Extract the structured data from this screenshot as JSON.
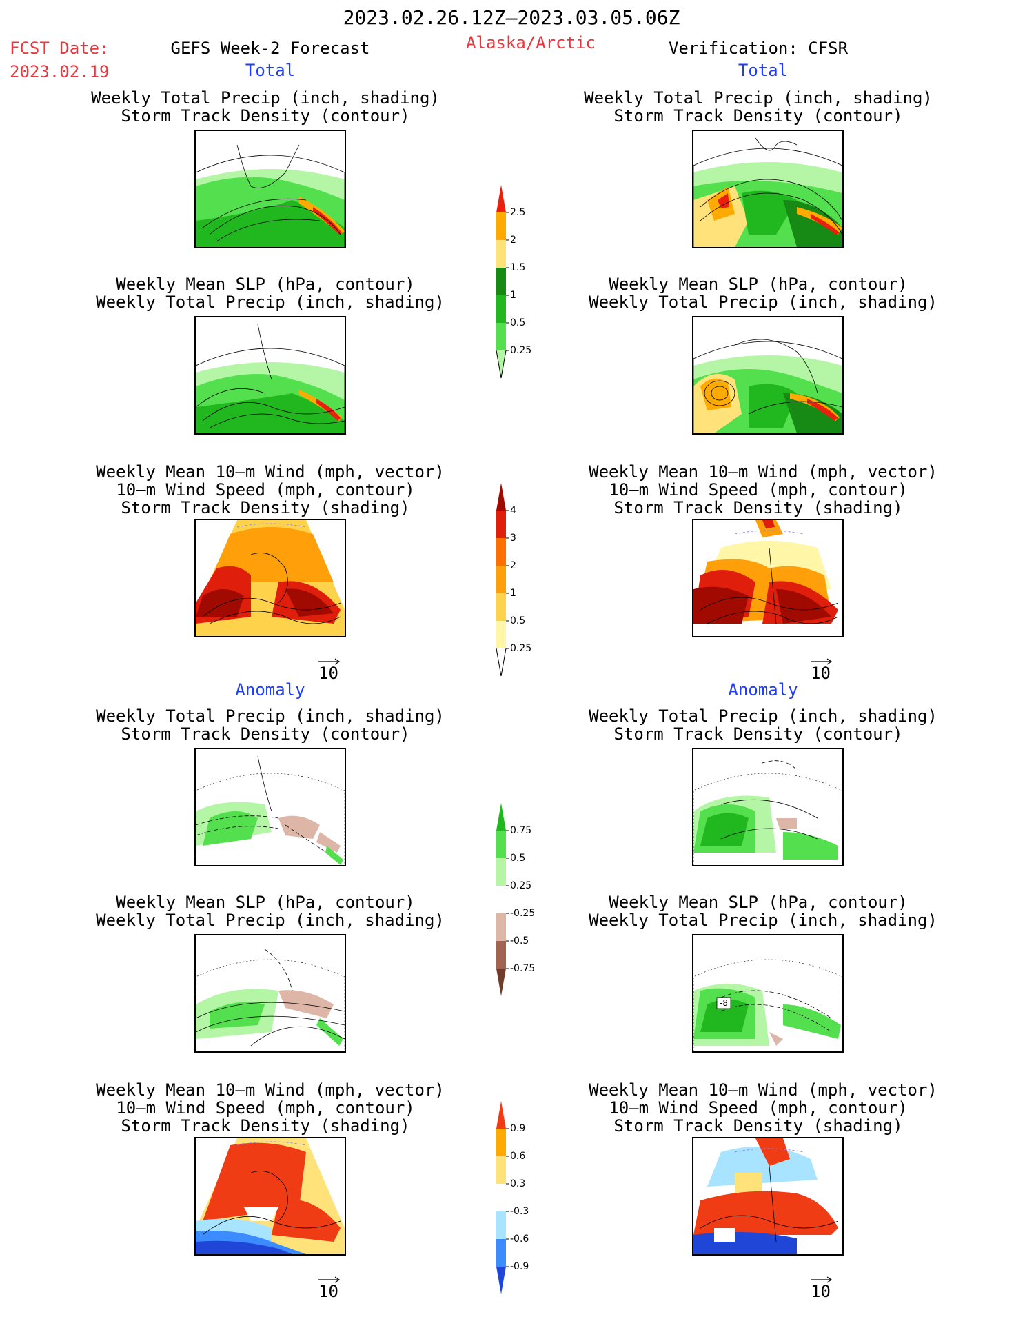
{
  "header": {
    "date_range": "2023.02.26.12Z–2023.03.05.06Z",
    "fcst_label": "FCST Date:",
    "fcst_date": "2023.02.19",
    "forecast_title": "GEFS Week-2 Forecast",
    "region": "Alaska/Arctic",
    "verification": "Verification: CFSR",
    "left_total": "Total",
    "right_total": "Total",
    "left_anomaly": "Anomaly",
    "right_anomaly": "Anomaly"
  },
  "titles": {
    "precip_track": [
      "Weekly Total Precip (inch, shading)",
      "Storm Track Density (contour)"
    ],
    "slp_precip": [
      "Weekly Mean SLP (hPa, contour)",
      "Weekly Total Precip (inch, shading)"
    ],
    "wind_track": [
      "Weekly Mean 10–m Wind (mph, vector)",
      "10–m Wind Speed (mph, contour)",
      "Storm Track Density (shading)"
    ]
  },
  "vector_scale": "10",
  "anomaly_label_minus8": "-8",
  "colorbars": {
    "precip_total": {
      "labels": [
        "0.25",
        "0.5",
        "1",
        "1.5",
        "2",
        "2.5"
      ],
      "colors": [
        "#b4f5a6",
        "#54e04e",
        "#20b81e",
        "#168a14",
        "#ffe27a",
        "#ffaa00",
        "#e8200e"
      ]
    },
    "track_total": {
      "labels": [
        "0.25",
        "0.5",
        "1",
        "2",
        "3",
        "4"
      ],
      "colors": [
        "#ffffff",
        "#fff6a8",
        "#ffd24c",
        "#ffa00a",
        "#ff6e00",
        "#e01e0c",
        "#a00a00"
      ]
    },
    "precip_anom": {
      "labels": [
        "-0.75",
        "-0.5",
        "-0.25",
        "0.25",
        "0.5",
        "0.75"
      ],
      "colors": [
        "#6e3c28",
        "#a06450",
        "#ddb6a8",
        "#ffffff",
        "#b4f5a6",
        "#54e04e",
        "#20b81e"
      ]
    },
    "track_anom": {
      "labels": [
        "-0.9",
        "-0.6",
        "-0.3",
        "0.3",
        "0.6",
        "0.9"
      ],
      "colors": [
        "#1f46d6",
        "#3c8cff",
        "#a8e4ff",
        "#ffffff",
        "#ffe27a",
        "#ffaa00",
        "#f03c14"
      ]
    }
  }
}
